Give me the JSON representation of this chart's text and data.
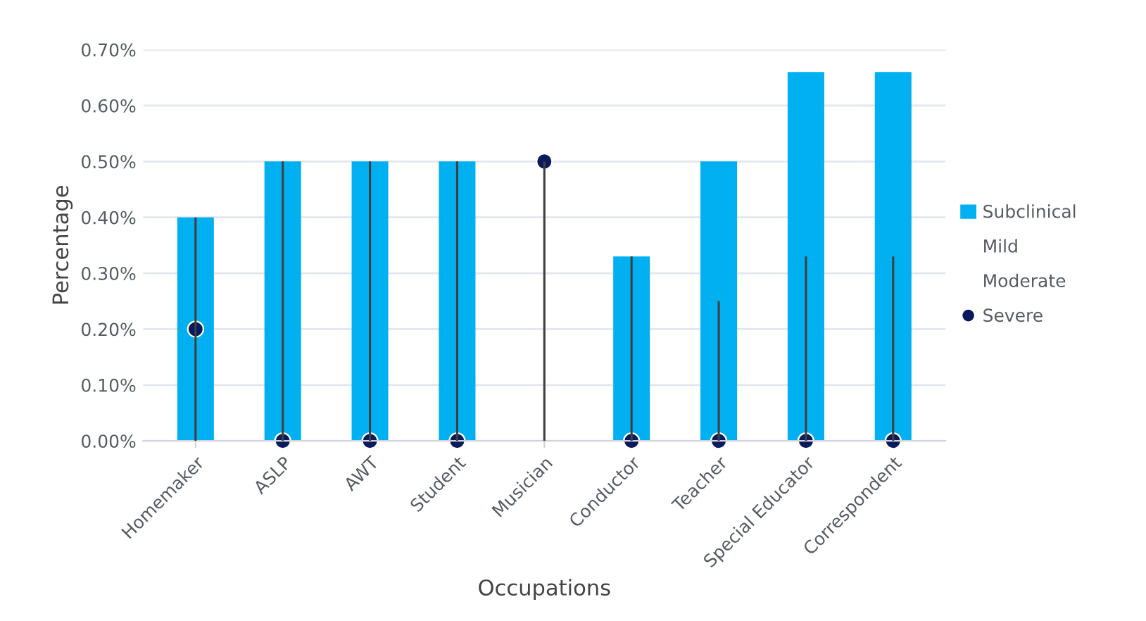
{
  "chart_data": {
    "type": "bar",
    "xlabel": "Occupations",
    "ylabel": "Percentage",
    "categories": [
      "Homemaker",
      "ASLP",
      "AWT",
      "Student",
      "Musician",
      "Conductor",
      "Teacher",
      "Special Educator",
      "Correspondent"
    ],
    "series": [
      {
        "name": "Subclinical",
        "color": "#00b0f0",
        "values": [
          0.4,
          0.5,
          0.5,
          0.5,
          0,
          0.33,
          0.5,
          0.66,
          0.66
        ]
      },
      {
        "name": "Mild",
        "type": "bar",
        "color": "#404040",
        "values": [
          0.4,
          0.5,
          0.5,
          0.5,
          0.5,
          0.33,
          0.25,
          0.33,
          0.33
        ]
      },
      {
        "name": "Moderate",
        "type": "line",
        "values": [
          null,
          null,
          null,
          null,
          null,
          null,
          null,
          null,
          null
        ]
      },
      {
        "name": "Severe",
        "type": "scatter",
        "marker": "circle",
        "color": "#0a1a5c",
        "values": [
          0.2,
          0,
          0,
          0,
          0.5,
          0,
          0,
          0,
          0
        ]
      }
    ],
    "ylim": [
      0,
      0.7
    ],
    "yticks": [
      {
        "value": 0,
        "label": "0.00%"
      },
      {
        "value": 0.1,
        "label": "0.10%"
      },
      {
        "value": 0.2,
        "label": "0.20%"
      },
      {
        "value": 0.3,
        "label": "0.30%"
      },
      {
        "value": 0.4,
        "label": "0.40%"
      },
      {
        "value": 0.5,
        "label": "0.50%"
      },
      {
        "value": 0.6,
        "label": "0.60%"
      },
      {
        "value": 0.7,
        "label": "0.70%"
      }
    ],
    "grid": "y",
    "legend": "right"
  }
}
